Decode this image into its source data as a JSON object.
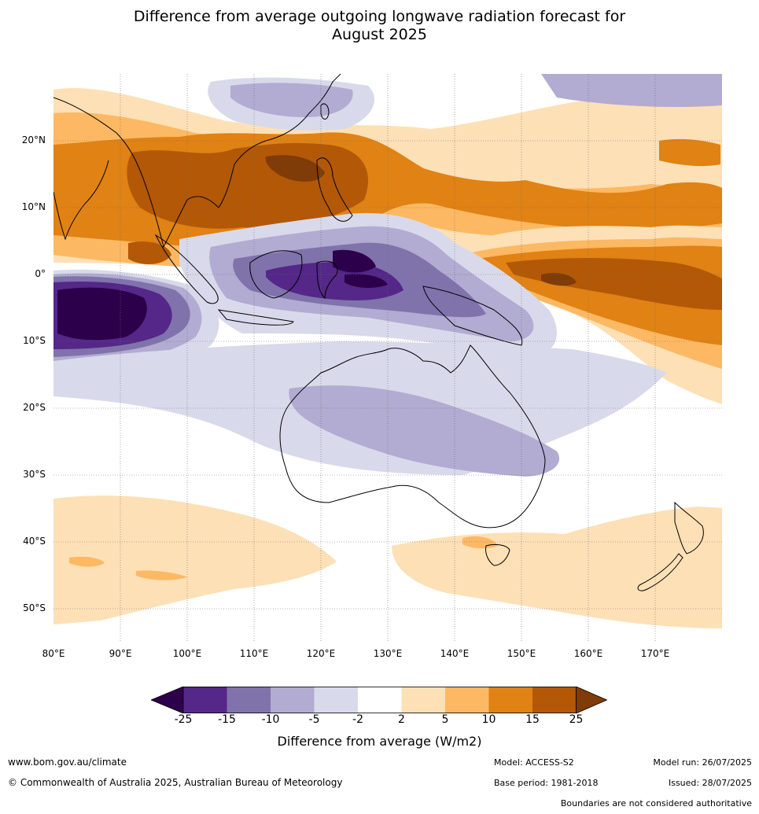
{
  "title": {
    "line1": "Difference from average outgoing longwave radiation forecast for",
    "line2": "August 2025"
  },
  "map": {
    "lat_labels": [
      "20°N",
      "10°N",
      "0°",
      "10°S",
      "20°S",
      "30°S",
      "40°S",
      "50°S"
    ],
    "lon_labels": [
      "80°E",
      "90°E",
      "100°E",
      "110°E",
      "120°E",
      "130°E",
      "140°E",
      "150°E",
      "160°E",
      "170°E"
    ]
  },
  "legend": {
    "ticks": [
      "-25",
      "-15",
      "-10",
      "-5",
      "-2",
      "2",
      "5",
      "10",
      "15",
      "25"
    ],
    "colors": [
      "#2d004b",
      "#542788",
      "#8073ac",
      "#b2abd2",
      "#d8daeb",
      "#ffffff",
      "#fee0b6",
      "#fdb863",
      "#e08214",
      "#b35806",
      "#7f3b08"
    ],
    "title": "Difference from average (W/m2)"
  },
  "footer": {
    "url": "www.bom.gov.au/climate",
    "copyright": "© Commonwealth of Australia 2025, Australian Bureau of Meteorology",
    "model": "Model: ACCESS-S2",
    "base_period": "Base period: 1981-2018",
    "model_run": "Model run: 26/07/2025",
    "issued": "Issued: 28/07/2025",
    "disclaimer": "Boundaries are not considered authoritative"
  }
}
